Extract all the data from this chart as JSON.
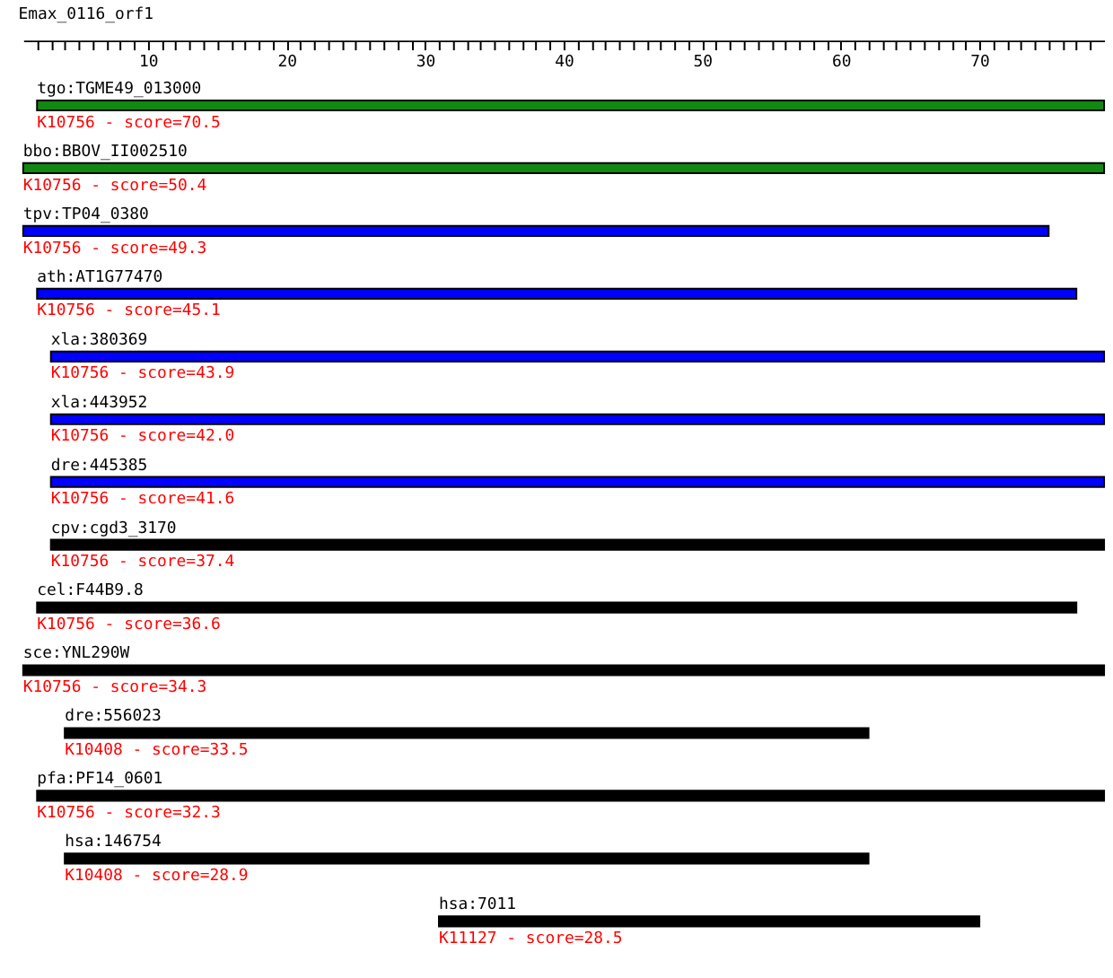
{
  "chart_data": {
    "type": "bar",
    "orientation": "horizontal",
    "title": "Emax_0116_orf1",
    "categories": [
      "tgo:TGME49_013000",
      "bbo:BBOV_II002510",
      "tpv:TP04_0380",
      "ath:AT1G77470",
      "xla:380369",
      "xla:443952",
      "dre:445385",
      "cpv:cgd3_3170",
      "cel:F44B9.8",
      "sce:YNL290W",
      "dre:556023",
      "pfa:PF14_0601",
      "hsa:146754",
      "hsa:7011"
    ],
    "base": [
      2,
      1,
      1,
      2,
      3,
      3,
      3,
      3,
      2,
      1,
      4,
      2,
      4,
      31
    ],
    "values": [
      77,
      78,
      74,
      75,
      76,
      76,
      76,
      76,
      75,
      78,
      58,
      77,
      58,
      39
    ],
    "colors": [
      "#118811",
      "#118811",
      "#0000ff",
      "#0000ff",
      "#0000ff",
      "#0000ff",
      "#0000ff",
      "#000000",
      "#000000",
      "#000000",
      "#000000",
      "#000000",
      "#000000",
      "#000000"
    ],
    "value_labels": [
      "K10756 - score=70.5",
      "K10756 - score=50.4",
      "K10756 - score=49.3",
      "K10756 - score=45.1",
      "K10756 - score=43.9",
      "K10756 - score=42.0",
      "K10756 - score=41.6",
      "K10756 - score=37.4",
      "K10756 - score=36.6",
      "K10756 - score=34.3",
      "K10408 - score=33.5",
      "K10756 - score=32.3",
      "K10408 - score=28.9",
      "K11127 - score=28.5"
    ],
    "xlim": [
      1,
      79
    ],
    "xticks": [
      {
        "value": 2,
        "label": null
      },
      {
        "value": 3,
        "label": null
      },
      {
        "value": 4,
        "label": null
      },
      {
        "value": 5,
        "label": null
      },
      {
        "value": 6,
        "label": null
      },
      {
        "value": 7,
        "label": null
      },
      {
        "value": 8,
        "label": null
      },
      {
        "value": 9,
        "label": null
      },
      10,
      {
        "value": 11,
        "label": null
      },
      {
        "value": 12,
        "label": null
      },
      {
        "value": 13,
        "label": null
      },
      {
        "value": 14,
        "label": null
      },
      {
        "value": 15,
        "label": null
      },
      {
        "value": 16,
        "label": null
      },
      {
        "value": 17,
        "label": null
      },
      {
        "value": 18,
        "label": null
      },
      {
        "value": 19,
        "label": null
      },
      20,
      {
        "value": 21,
        "label": null
      },
      {
        "value": 22,
        "label": null
      },
      {
        "value": 23,
        "label": null
      },
      {
        "value": 24,
        "label": null
      },
      {
        "value": 25,
        "label": null
      },
      {
        "value": 26,
        "label": null
      },
      {
        "value": 27,
        "label": null
      },
      {
        "value": 28,
        "label": null
      },
      {
        "value": 29,
        "label": null
      },
      30,
      {
        "value": 31,
        "label": null
      },
      {
        "value": 32,
        "label": null
      },
      {
        "value": 33,
        "label": null
      },
      {
        "value": 34,
        "label": null
      },
      {
        "value": 35,
        "label": null
      },
      {
        "value": 36,
        "label": null
      },
      {
        "value": 37,
        "label": null
      },
      {
        "value": 38,
        "label": null
      },
      {
        "value": 39,
        "label": null
      },
      40,
      {
        "value": 41,
        "label": null
      },
      {
        "value": 42,
        "label": null
      },
      {
        "value": 43,
        "label": null
      },
      {
        "value": 44,
        "label": null
      },
      {
        "value": 45,
        "label": null
      },
      {
        "value": 46,
        "label": null
      },
      {
        "value": 47,
        "label": null
      },
      {
        "value": 48,
        "label": null
      },
      {
        "value": 49,
        "label": null
      },
      50,
      {
        "value": 51,
        "label": null
      },
      {
        "value": 52,
        "label": null
      },
      {
        "value": 53,
        "label": null
      },
      {
        "value": 54,
        "label": null
      },
      {
        "value": 55,
        "label": null
      },
      {
        "value": 56,
        "label": null
      },
      {
        "value": 57,
        "label": null
      },
      {
        "value": 58,
        "label": null
      },
      {
        "value": 59,
        "label": null
      },
      60,
      {
        "value": 61,
        "label": null
      },
      {
        "value": 62,
        "label": null
      },
      {
        "value": 63,
        "label": null
      },
      {
        "value": 64,
        "label": null
      },
      {
        "value": 65,
        "label": null
      },
      {
        "value": 66,
        "label": null
      },
      {
        "value": 67,
        "label": null
      },
      {
        "value": 68,
        "label": null
      },
      {
        "value": 69,
        "label": null
      },
      70,
      {
        "value": 71,
        "label": null
      },
      {
        "value": 72,
        "label": null
      },
      {
        "value": 73,
        "label": null
      },
      {
        "value": 74,
        "label": null
      },
      {
        "value": 75,
        "label": null
      },
      {
        "value": 76,
        "label": null
      },
      {
        "value": 77,
        "label": null
      },
      {
        "value": 78,
        "label": null
      }
    ],
    "tick_labels": "x",
    "grid": false
  }
}
